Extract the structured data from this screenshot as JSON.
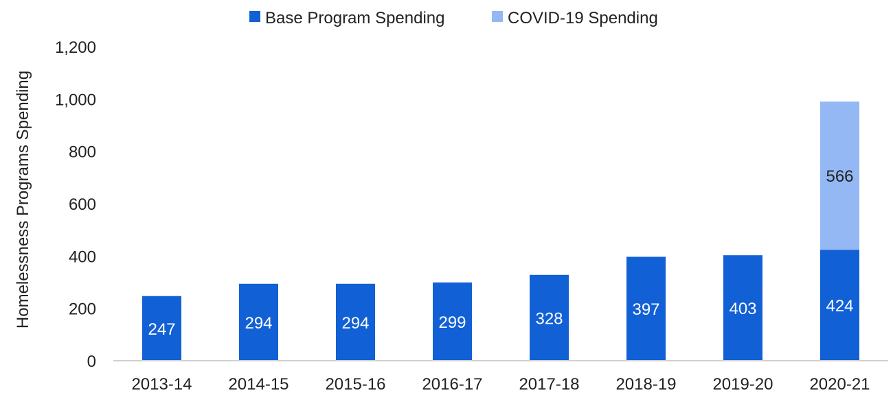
{
  "colors": {
    "base": "#1160d6",
    "covid": "#93b8f4",
    "axis_line": "#d0d0d0",
    "text": "#222222",
    "label_on_base": "#ffffff",
    "label_on_covid": "#222222"
  },
  "chart_data": {
    "type": "bar",
    "stacked": true,
    "categories": [
      "2013-14",
      "2014-15",
      "2015-16",
      "2016-17",
      "2017-18",
      "2018-19",
      "2019-20",
      "2020-21"
    ],
    "series": [
      {
        "name": "Base Program Spending",
        "values": [
          247,
          294,
          294,
          299,
          328,
          397,
          403,
          424
        ],
        "color": "#1160d6"
      },
      {
        "name": "COVID-19 Spending",
        "values": [
          null,
          null,
          null,
          null,
          null,
          null,
          null,
          566
        ],
        "color": "#93b8f4"
      }
    ],
    "title": "",
    "xlabel": "",
    "ylabel": "Homelessness Programs Spending",
    "ylim": [
      0,
      1200
    ],
    "yticks": [
      0,
      200,
      400,
      600,
      800,
      1000,
      1200
    ],
    "ytick_labels": [
      "0",
      "200",
      "400",
      "600",
      "800",
      "1,000",
      "1,200"
    ],
    "grid": false,
    "legend_position": "top-center"
  }
}
